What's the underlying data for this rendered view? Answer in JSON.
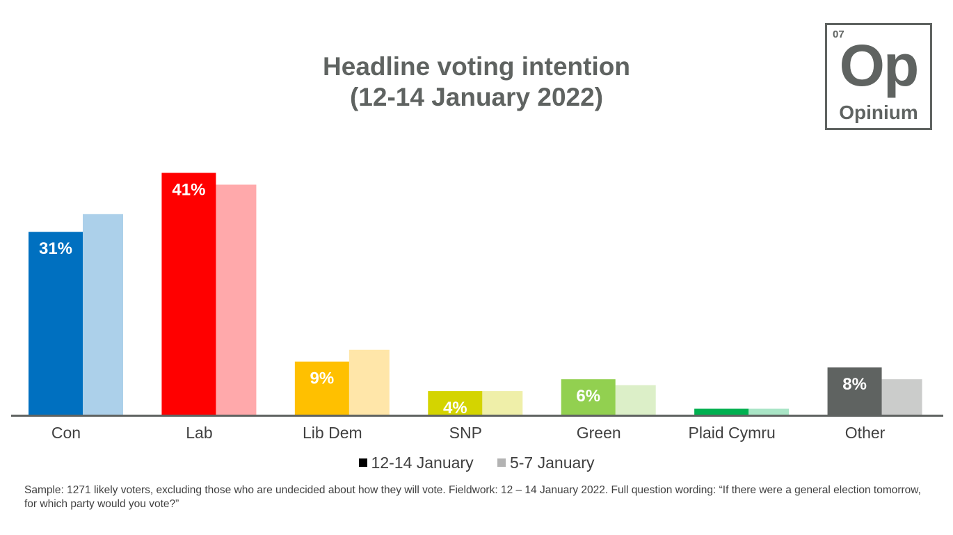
{
  "title_lines": [
    "Headline voting intention",
    "(12-14 January 2022)"
  ],
  "logo": {
    "number": "07",
    "symbol": "Op",
    "name": "Opinium"
  },
  "colors": {
    "axis": "#5f6361",
    "label_text": "#404040",
    "value_label": "#ffffff",
    "legend_current": "#000000",
    "legend_previous": "#b3b3b3"
  },
  "chart_data": {
    "type": "bar",
    "title": "Headline voting intention (12-14 January 2022)",
    "categories": [
      "Con",
      "Lab",
      "Lib Dem",
      "SNP",
      "Green",
      "Plaid Cymru",
      "Other"
    ],
    "series": [
      {
        "name": "12-14 January",
        "values": [
          31,
          41,
          9,
          4,
          6,
          1,
          8
        ],
        "labels": [
          "31%",
          "41%",
          "9%",
          "4%",
          "6%",
          "",
          "8%"
        ],
        "colors": [
          "#0070c0",
          "#ff0000",
          "#ffc000",
          "#d4d400",
          "#92d050",
          "#00b050",
          "#5f6361"
        ]
      },
      {
        "name": "5-7 January",
        "values": [
          34,
          39,
          11,
          4,
          5,
          1,
          6
        ],
        "colors": [
          "#acd0ea",
          "#ffa9ab",
          "#ffe6a9",
          "#efefa9",
          "#dcefc8",
          "#a9e5c6",
          "#cbcccb"
        ]
      }
    ],
    "ylim": [
      0,
      42
    ],
    "legend_position": "bottom",
    "grid": false
  },
  "note": "Sample: 1271 likely voters, excluding those who are undecided about how they will vote. Fieldwork: 12 – 14 January 2022. Full question wording: “If there were a general election tomorrow, for which party would you vote?”"
}
